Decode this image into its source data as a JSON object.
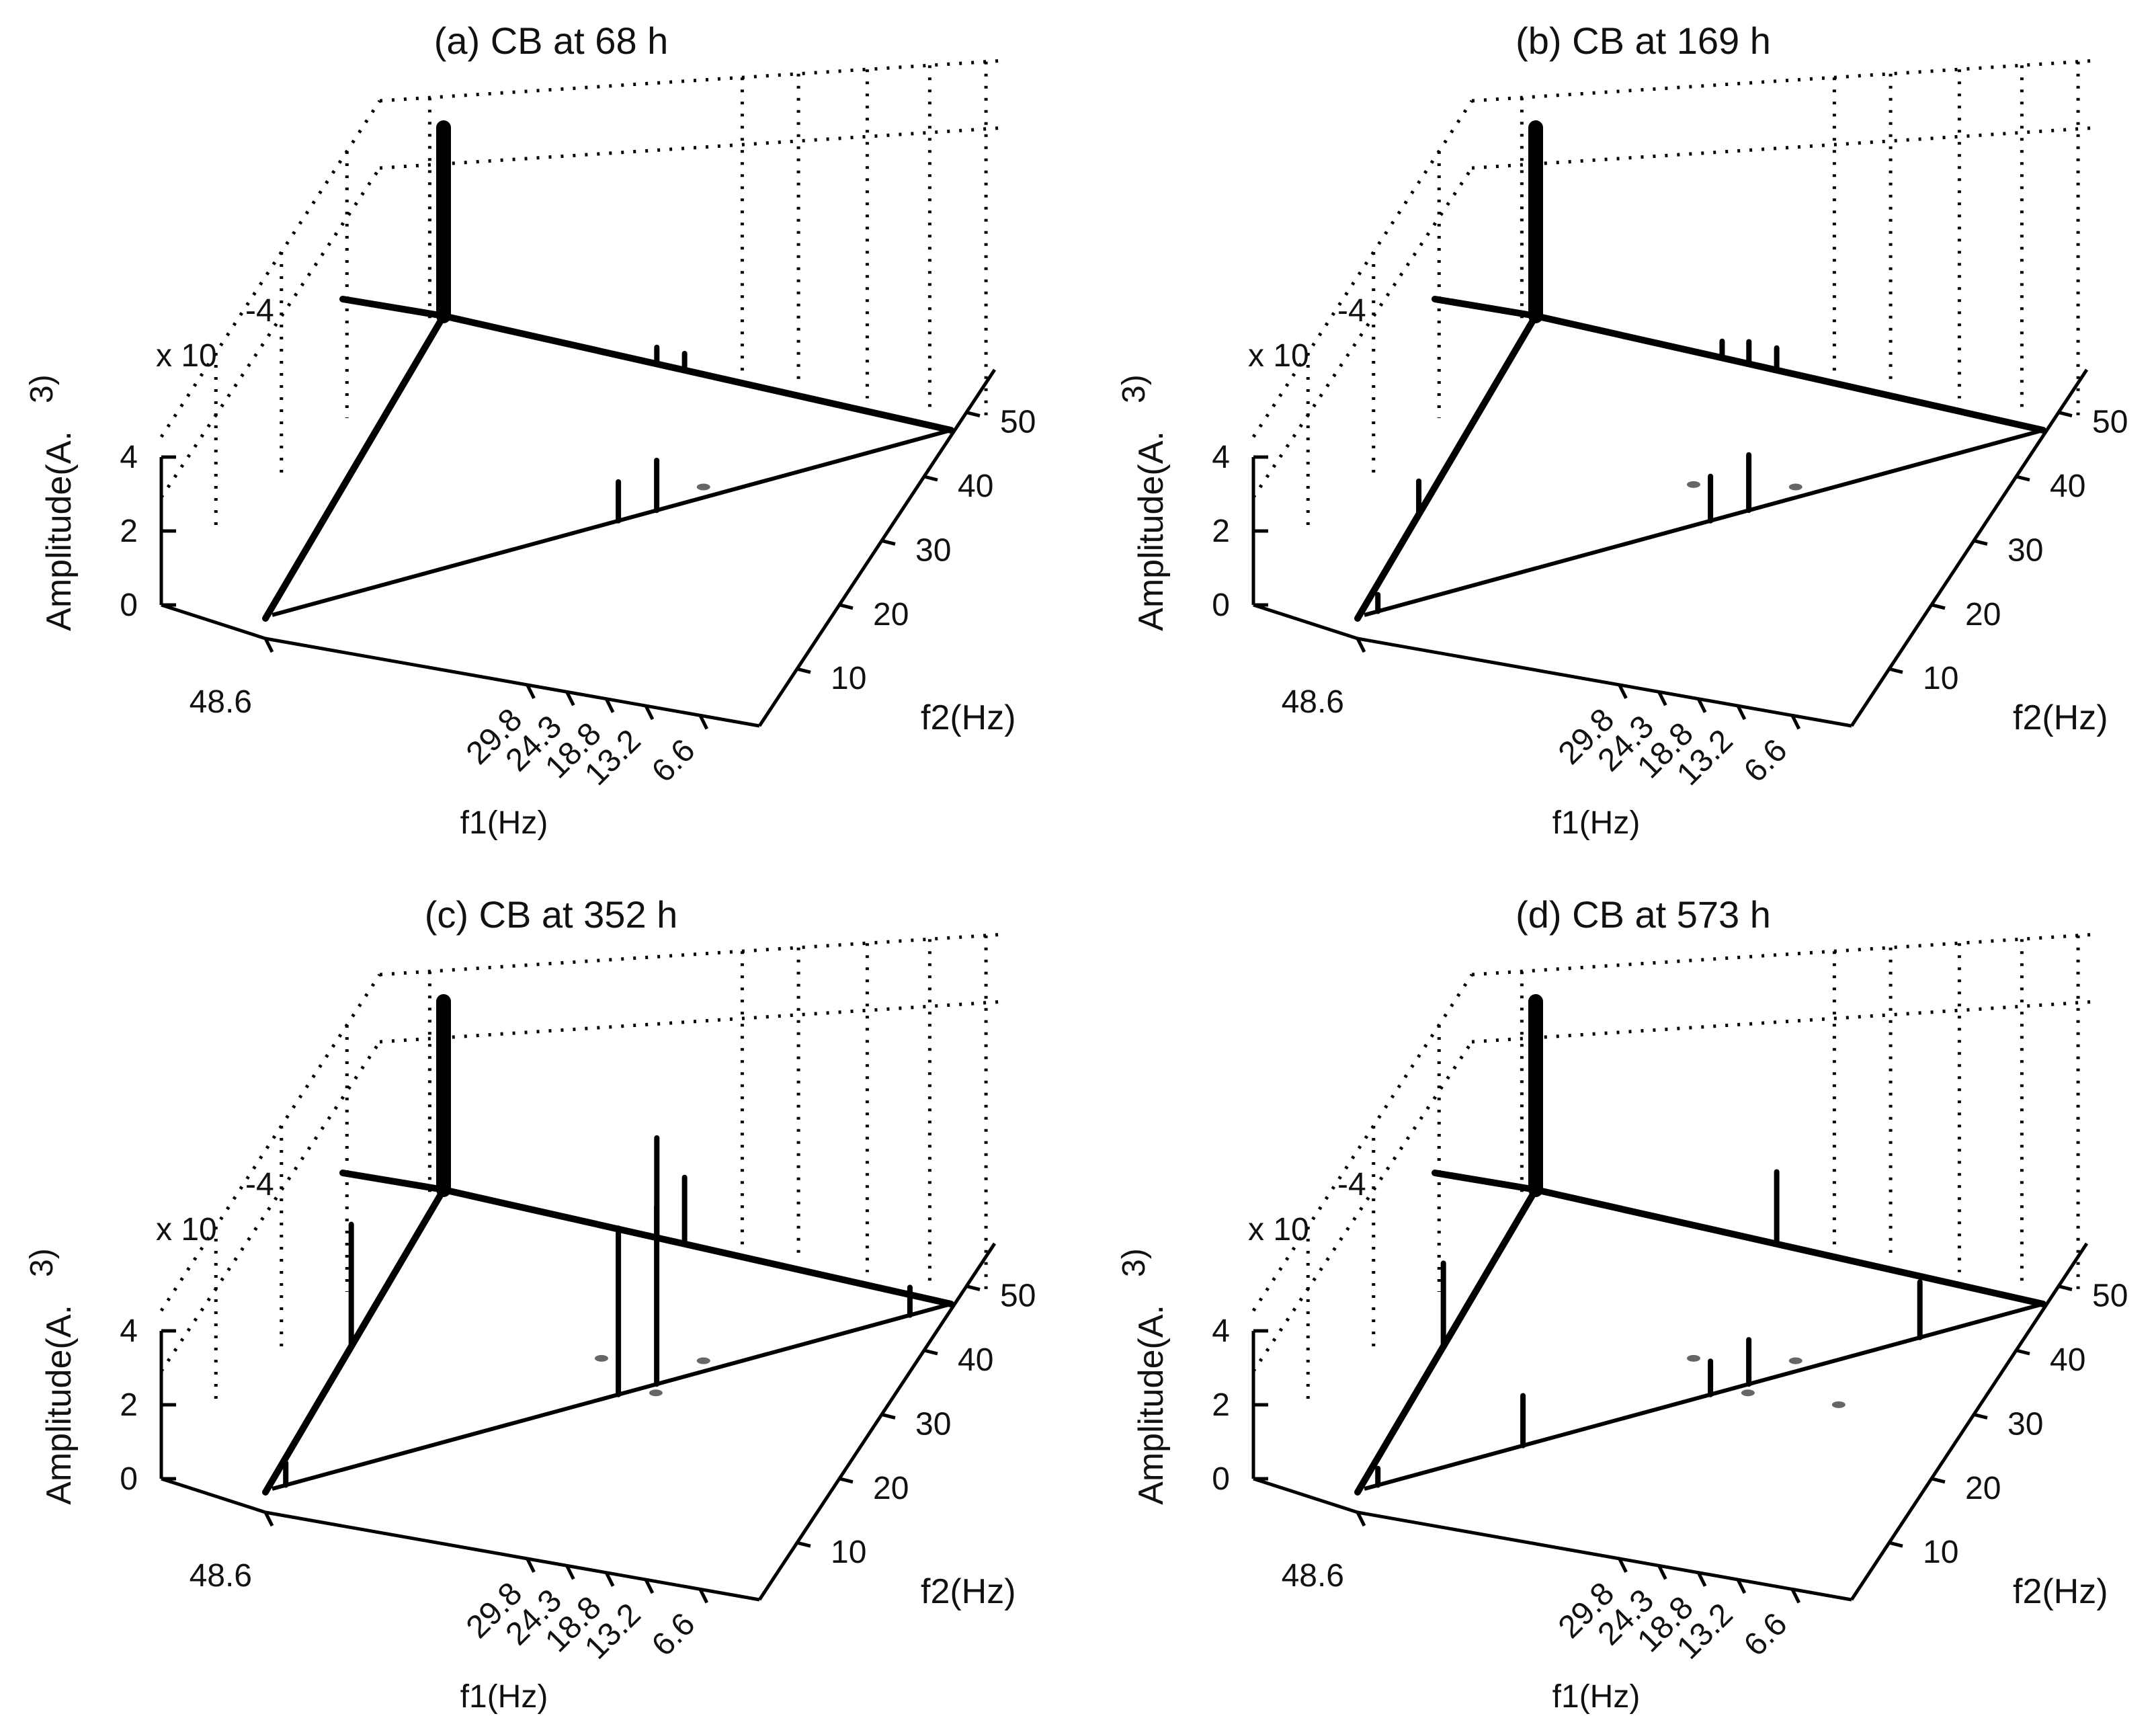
{
  "chart_data": [
    {
      "type": "surface3d",
      "title": "(a) CB at 68 h",
      "xlabel": "f1(Hz)",
      "ylabel": "f2(Hz)",
      "zlabel": "Amplitude(A.^3)",
      "z_scale": "x 10^-4",
      "z_ticks": [
        "0",
        "2",
        "4"
      ],
      "f1_ticks": [
        "48.6",
        "29.8",
        "24.3",
        "18.8",
        "13.2",
        "6.6"
      ],
      "f2_ticks": [
        "10",
        "20",
        "30",
        "40",
        "50"
      ],
      "peaks": [
        {
          "f1": 0,
          "f2": 0,
          "amplitude": 10
        },
        {
          "f1": 24.3,
          "f2": 24.3,
          "amplitude": 0.7
        },
        {
          "f1": 21.5,
          "f2": 21.5,
          "amplitude": 0.9
        },
        {
          "f1": 24.3,
          "f2": 0,
          "amplitude": 0.3
        },
        {
          "f1": 21.5,
          "f2": 0,
          "amplitude": 0.3
        }
      ]
    },
    {
      "type": "surface3d",
      "title": "(b) CB at 169 h",
      "xlabel": "f1(Hz)",
      "ylabel": "f2(Hz)",
      "zlabel": "Amplitude(A.^3)",
      "z_scale": "x 10^-4",
      "z_ticks": [
        "0",
        "2",
        "4"
      ],
      "f1_ticks": [
        "48.6",
        "29.8",
        "24.3",
        "18.8",
        "13.2",
        "6.6"
      ],
      "f2_ticks": [
        "10",
        "20",
        "30",
        "40",
        "50"
      ],
      "peaks": [
        {
          "f1": 0,
          "f2": 0,
          "amplitude": 10
        },
        {
          "f1": 24.3,
          "f2": 24.3,
          "amplitude": 0.8
        },
        {
          "f1": 21.5,
          "f2": 21.5,
          "amplitude": 1.0
        },
        {
          "f1": 24.3,
          "f2": 0,
          "amplitude": 0.4
        },
        {
          "f1": 21.5,
          "f2": 0,
          "amplitude": 0.4
        },
        {
          "f1": 18.8,
          "f2": 0,
          "amplitude": 0.3
        },
        {
          "f1": 48.6,
          "f2": 48.6,
          "amplitude": 0.3
        },
        {
          "f1": 0,
          "f2": 38,
          "amplitude": 0.6
        }
      ]
    },
    {
      "type": "surface3d",
      "title": "(c) CB at 352 h",
      "xlabel": "f1(Hz)",
      "ylabel": "f2(Hz)",
      "zlabel": "Amplitude(A.^3)",
      "z_scale": "x 10^-4",
      "z_ticks": [
        "0",
        "2",
        "4"
      ],
      "f1_ticks": [
        "48.6",
        "29.8",
        "24.3",
        "18.8",
        "13.2",
        "6.6"
      ],
      "f2_ticks": [
        "10",
        "20",
        "30",
        "40",
        "50"
      ],
      "peaks": [
        {
          "f1": 0,
          "f2": 0,
          "amplitude": 10
        },
        {
          "f1": 24.3,
          "f2": 24.3,
          "amplitude": 3.0
        },
        {
          "f1": 21.5,
          "f2": 21.5,
          "amplitude": 3.2
        },
        {
          "f1": 24.3,
          "f2": 0,
          "amplitude": 1.2
        },
        {
          "f1": 21.5,
          "f2": 0,
          "amplitude": 1.8
        },
        {
          "f1": 0,
          "f2": 30,
          "amplitude": 2.2
        },
        {
          "f1": 48.6,
          "f2": 48.6,
          "amplitude": 0.4
        },
        {
          "f1": 3,
          "f2": 3,
          "amplitude": 0.5
        }
      ]
    },
    {
      "type": "surface3d",
      "title": "(d) CB at 573 h",
      "xlabel": "f1(Hz)",
      "ylabel": "f2(Hz)",
      "zlabel": "Amplitude(A.^3)",
      "z_scale": "x 10^-4",
      "z_ticks": [
        "0",
        "2",
        "4"
      ],
      "f1_ticks": [
        "48.6",
        "29.8",
        "24.3",
        "18.8",
        "13.2",
        "6.6"
      ],
      "f2_ticks": [
        "10",
        "20",
        "30",
        "40",
        "50"
      ],
      "peaks": [
        {
          "f1": 0,
          "f2": 0,
          "amplitude": 10
        },
        {
          "f1": 24.3,
          "f2": 24.3,
          "amplitude": 0.6
        },
        {
          "f1": 21.5,
          "f2": 21.5,
          "amplitude": 0.8
        },
        {
          "f1": 38,
          "f2": 38,
          "amplitude": 0.9
        },
        {
          "f1": 9,
          "f2": 9,
          "amplitude": 1.0
        },
        {
          "f1": 24.3,
          "f2": 0,
          "amplitude": 1.3
        },
        {
          "f1": 0,
          "f2": 30,
          "amplitude": 1.5
        },
        {
          "f1": 48.6,
          "f2": 48.6,
          "amplitude": 0.3
        }
      ]
    }
  ]
}
